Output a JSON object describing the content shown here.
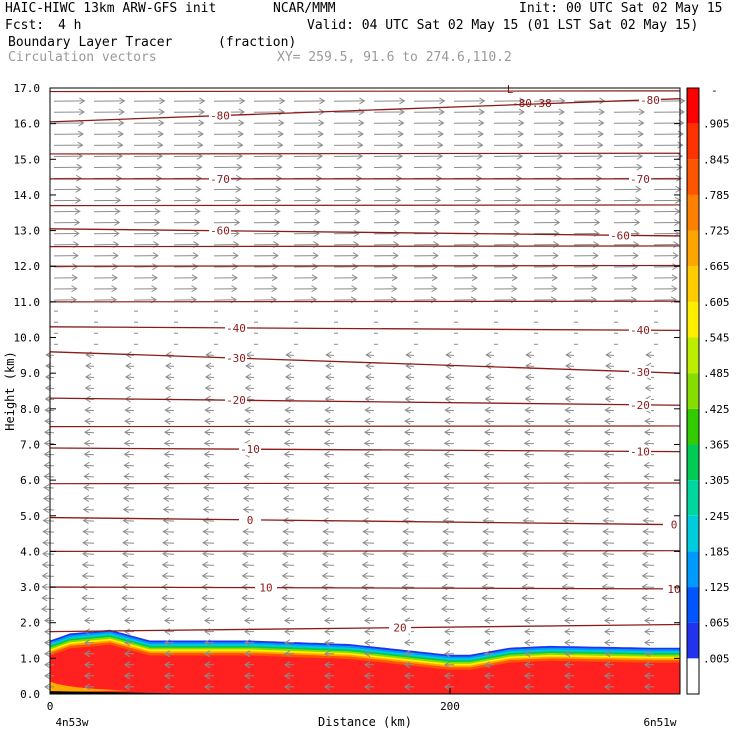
{
  "header": {
    "title_left": "HAIC-HIWC 13km ARW-GFS init",
    "title_mid": "NCAR/MMM",
    "init": "Init: 00 UTC Sat 02 May 15",
    "fcst_label": "Fcst:",
    "fcst_value": "4 h",
    "valid": "Valid: 04 UTC Sat 02 May 15 (01 LST Sat 02 May 15)",
    "field1": "Boundary Layer Tracer",
    "field1_units": "(fraction)",
    "field2": "Circulation vectors",
    "xy": "XY= 259.5, 91.6 to 274.6,110.2"
  },
  "colors": {
    "contour": "#8b1a1a",
    "vector": "#8c8c8c",
    "fill_high": "#ff2020"
  },
  "chart_data": {
    "type": "heatmap",
    "xlabel": "Distance (km)",
    "ylabel": "Height (km)",
    "xlim": [
      0,
      315
    ],
    "ylim": [
      0,
      17
    ],
    "x_ticks": [
      0,
      200
    ],
    "x_endpoints": {
      "left": "4n53w",
      "right": "6n51w"
    },
    "y_ticks": [
      "0.0",
      "1.0",
      "2.0",
      "3.0",
      "4.0",
      "5.0",
      "6.0",
      "7.0",
      "8.0",
      "9.0",
      "10.0",
      "11.0",
      "12.0",
      "13.0",
      "14.0",
      "15.0",
      "16.0",
      "17.0"
    ],
    "colorbar": {
      "labels": [
        ".005",
        ".065",
        ".125",
        ".185",
        ".245",
        ".305",
        ".365",
        ".425",
        ".485",
        ".545",
        ".605",
        ".665",
        ".725",
        ".785",
        ".845",
        ".905"
      ],
      "top_label": "-",
      "colors": [
        "#ffffff",
        "#2233ee",
        "#0055ff",
        "#0099ff",
        "#00ccdd",
        "#00d6a0",
        "#00cc55",
        "#33cc00",
        "#88dd00",
        "#bbee00",
        "#ffee00",
        "#ffcc00",
        "#ffa500",
        "#ff7f00",
        "#ff5500",
        "#ff3300",
        "#ff0000"
      ]
    },
    "tracer_top_km": {
      "x": [
        0,
        10,
        30,
        50,
        80,
        100,
        150,
        200,
        210,
        230,
        250,
        300,
        315
      ],
      "y": [
        1.5,
        1.7,
        1.8,
        1.5,
        1.5,
        1.5,
        1.4,
        1.1,
        1.1,
        1.3,
        1.35,
        1.3,
        1.3
      ]
    },
    "temperature_contours": [
      {
        "value": -80,
        "label": "-80",
        "y_left": 16.05,
        "y_right": 16.7,
        "label_x": [
          85,
          300
        ]
      },
      {
        "value": -70,
        "label": "-70",
        "y_left": 14.45,
        "y_right": 14.45,
        "label_x": [
          85,
          295
        ]
      },
      {
        "value": -60,
        "label": "-60",
        "y_left": 13.05,
        "y_right": 12.85,
        "label_x": [
          85,
          285
        ]
      },
      {
        "value": -40,
        "label": "-40",
        "y_left": 10.3,
        "y_right": 10.2,
        "label_x": [
          93,
          295
        ]
      },
      {
        "value": -30,
        "label": "-30",
        "y_left": 9.6,
        "y_right": 9.0,
        "label_x": [
          93,
          295
        ]
      },
      {
        "value": -20,
        "label": "-20",
        "y_left": 8.3,
        "y_right": 8.1,
        "label_x": [
          93,
          295
        ]
      },
      {
        "value": -10,
        "label": "-10",
        "y_left": 6.9,
        "y_right": 6.8,
        "label_x": [
          100,
          295
        ]
      },
      {
        "value": 0,
        "label": "0",
        "y_left": 4.95,
        "y_right": 4.75,
        "label_x": [
          100,
          312
        ]
      },
      {
        "value": 10,
        "label": "10",
        "y_left": 3.0,
        "y_right": 2.95,
        "label_x": [
          108,
          312
        ]
      },
      {
        "value": 20,
        "label": "20",
        "y_left": 1.75,
        "y_right": 1.95,
        "label_x": [
          175,
          999
        ]
      }
    ],
    "extra_isotherm_heights_km": [
      16.9,
      15.15,
      13.7,
      12.55,
      12.0,
      11.0,
      7.5,
      5.9,
      4.0
    ],
    "low_label": {
      "text": "L",
      "value": "-80.38",
      "x": 230,
      "y": 16.75
    }
  }
}
